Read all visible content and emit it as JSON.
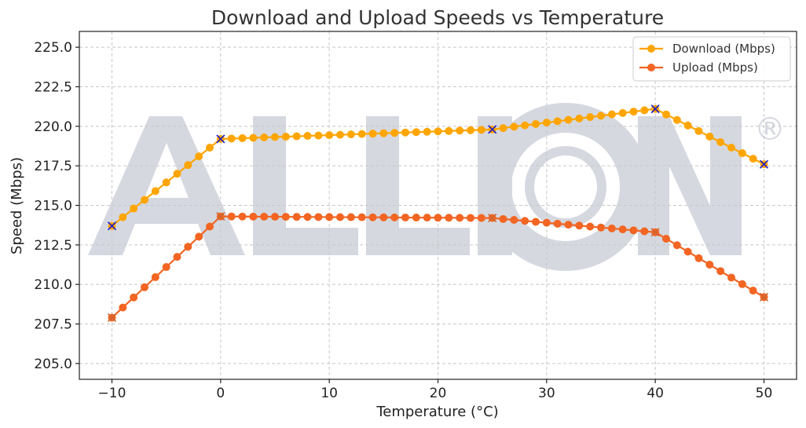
{
  "chart_data": {
    "type": "line",
    "title": "Download and Upload Speeds vs Temperature",
    "xlabel": "Temperature (°C)",
    "ylabel": "Speed (Mbps)",
    "xlim": [
      -13,
      53
    ],
    "ylim": [
      204.0,
      226.0
    ],
    "xticks": [
      -10,
      0,
      10,
      20,
      30,
      40,
      50
    ],
    "xtick_labels": [
      "−10",
      "0",
      "10",
      "20",
      "30",
      "40",
      "50"
    ],
    "yticks": [
      205.0,
      207.5,
      210.0,
      212.5,
      215.0,
      217.5,
      220.0,
      222.5,
      225.0
    ],
    "ytick_labels": [
      "205.0",
      "207.5",
      "210.0",
      "212.5",
      "215.0",
      "217.5",
      "220.0",
      "222.5",
      "225.0"
    ],
    "grid": true,
    "legend_position": "top-right",
    "marker_step": 1,
    "series": [
      {
        "name": "Download (Mbps)",
        "color": "#ffa500",
        "x": [
          -10,
          0,
          25,
          40,
          50
        ],
        "y": [
          213.7,
          219.2,
          219.8,
          221.1,
          217.6
        ]
      },
      {
        "name": "Upload (Mbps)",
        "color": "#f26522",
        "x": [
          -10,
          0,
          25,
          40,
          50
        ],
        "y": [
          207.9,
          214.3,
          214.2,
          213.3,
          209.2
        ]
      }
    ]
  },
  "watermark": {
    "text": "ALLION",
    "registered_mark": "®"
  }
}
